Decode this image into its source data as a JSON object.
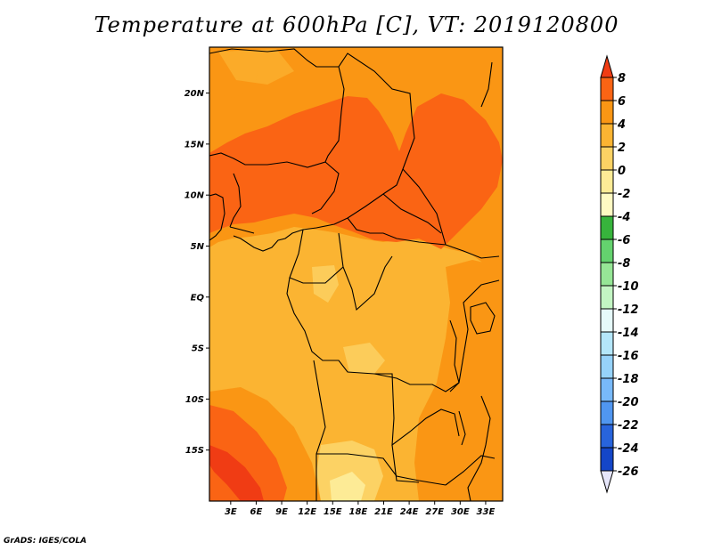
{
  "title": "Temperature at 600hPa [C], VT: 2019120800",
  "credit": "GrADS: IGES/COLA",
  "map": {
    "lat_ticks": [
      "20N",
      "15N",
      "10N",
      "5N",
      "EQ",
      "5S",
      "10S",
      "15S"
    ],
    "lat_values": [
      20,
      15,
      10,
      5,
      0,
      -5,
      -10,
      -15
    ],
    "lon_ticks": [
      "3E",
      "6E",
      "9E",
      "12E",
      "15E",
      "18E",
      "21E",
      "24E",
      "27E",
      "30E",
      "33E"
    ],
    "lon_values": [
      3,
      6,
      9,
      12,
      15,
      18,
      21,
      24,
      27,
      30,
      33
    ],
    "lat_range": [
      -20,
      24.5
    ],
    "lon_range": [
      0.5,
      35
    ]
  },
  "colorbar": {
    "labels": [
      "8",
      "6",
      "4",
      "2",
      "0",
      "-2",
      "-4",
      "-6",
      "-8",
      "-10",
      "-12",
      "-14",
      "-16",
      "-18",
      "-20",
      "-22",
      "-24",
      "-26"
    ],
    "colors": [
      "#f03c14",
      "#fa6414",
      "#fa9614",
      "#fbb432",
      "#fcd264",
      "#fdeb96",
      "#fffac3",
      "#37b43c",
      "#64d26e",
      "#96e696",
      "#c3f5c3",
      "#e6fafa",
      "#b4e6fa",
      "#96d2fa",
      "#78b9fa",
      "#5096f0",
      "#2864dc",
      "#1446c8",
      "#0a1e78"
    ]
  }
}
